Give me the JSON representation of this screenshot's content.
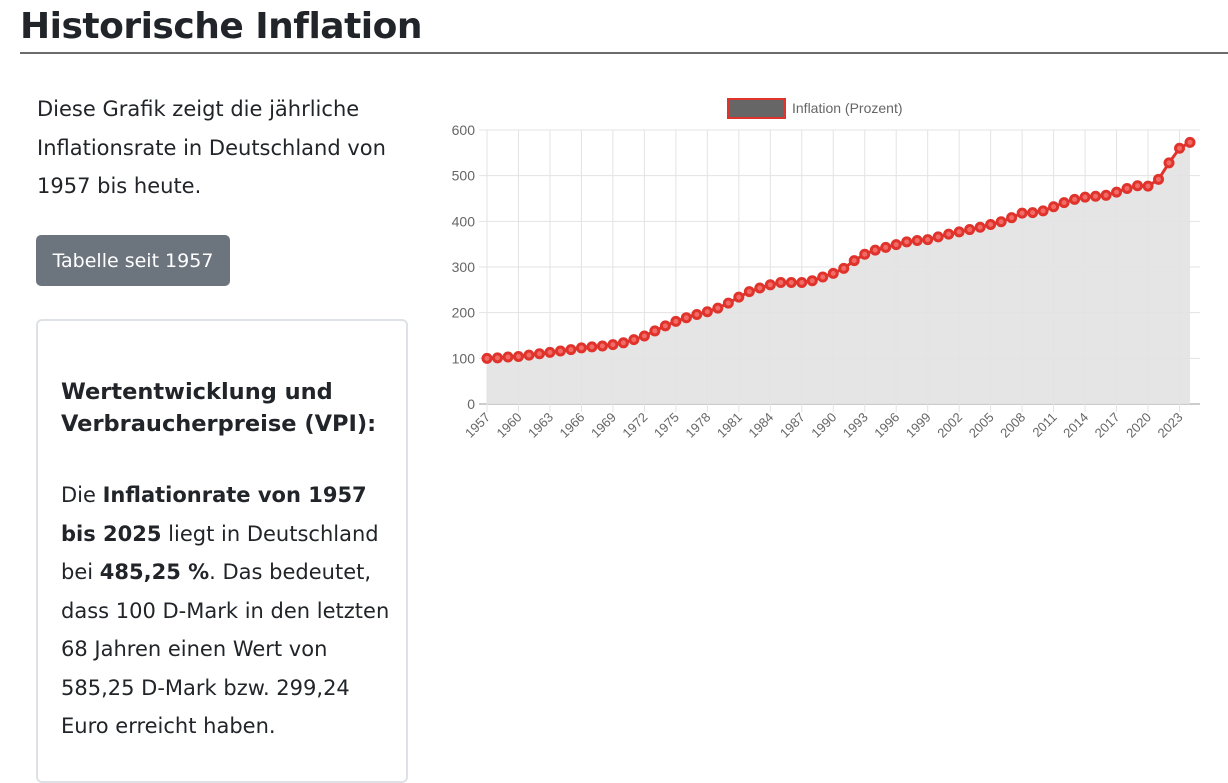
{
  "page": {
    "title": "Historische Inflation"
  },
  "intro": "Diese Grafik zeigt die jährliche Inflationsrate in Deutschland von 1957 bis heute.",
  "button": {
    "label": "Tabelle seit 1957"
  },
  "card": {
    "heading": "Wertentwicklung und Verbraucherpreise (VPI):",
    "t1": "Die ",
    "b1": "Inflationrate von 1957 bis 2025",
    "t2": " liegt in Deutschland bei ",
    "b2": "485,25 %",
    "t3": ". Das bedeutet, dass 100 D-Mark in den letzten 68 Jahren einen Wert von 585,25 D-Mark bzw. 299,24 Euro erreicht haben."
  },
  "chart_data": {
    "type": "area",
    "legend": "Inflation (Prozent)",
    "legend_position": "top",
    "colors": {
      "line": "#e0332c",
      "fill": "#e2e2e2",
      "legend_box": "#666666"
    },
    "ylim": [
      0,
      600
    ],
    "yticks": [
      0,
      100,
      200,
      300,
      400,
      500,
      600
    ],
    "x": [
      1957,
      1958,
      1959,
      1960,
      1961,
      1962,
      1963,
      1964,
      1965,
      1966,
      1967,
      1968,
      1969,
      1970,
      1971,
      1972,
      1973,
      1974,
      1975,
      1976,
      1977,
      1978,
      1979,
      1980,
      1981,
      1982,
      1983,
      1984,
      1985,
      1986,
      1987,
      1988,
      1989,
      1990,
      1991,
      1992,
      1993,
      1994,
      1995,
      1996,
      1997,
      1998,
      1999,
      2000,
      2001,
      2002,
      2003,
      2004,
      2005,
      2006,
      2007,
      2008,
      2009,
      2010,
      2011,
      2012,
      2013,
      2014,
      2015,
      2016,
      2017,
      2018,
      2019,
      2020,
      2021,
      2022,
      2023,
      2024
    ],
    "values": [
      100,
      101,
      103,
      104,
      107,
      110,
      113,
      116,
      119,
      123,
      125,
      127,
      130,
      134,
      141,
      149,
      160,
      171,
      181,
      189,
      196,
      202,
      210,
      221,
      234,
      246,
      254,
      261,
      266,
      266,
      266,
      270,
      278,
      286,
      297,
      314,
      328,
      337,
      343,
      349,
      355,
      358,
      360,
      366,
      372,
      377,
      382,
      387,
      393,
      399,
      408,
      418,
      419,
      423,
      432,
      441,
      448,
      453,
      455,
      457,
      464,
      472,
      478,
      477,
      492,
      528,
      560,
      573
    ],
    "xtick_every": 3,
    "grid": true
  }
}
